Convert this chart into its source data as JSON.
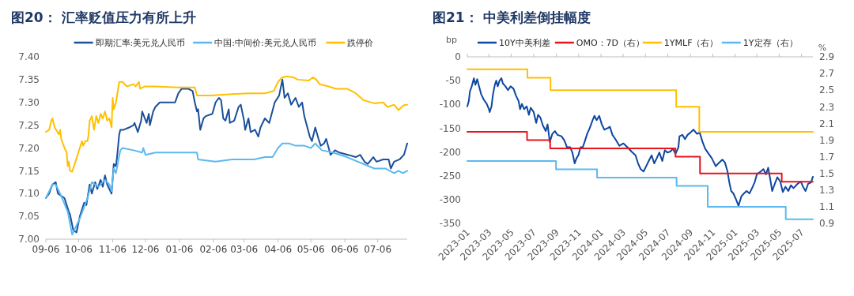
{
  "chart_data": [
    {
      "type": "line",
      "title": "图20：  汇率贬值压力有所上升",
      "legend": "top",
      "xlim": [
        "2024-09-06",
        "2025-08-02"
      ],
      "xticks": [
        {
          "value": "2024-09-06",
          "label": "09-06"
        },
        {
          "value": "2024-10-06",
          "label": "10-06"
        },
        {
          "value": "2024-11-06",
          "label": "11-06"
        },
        {
          "value": "2024-12-06",
          "label": "12-06"
        },
        {
          "value": "2025-01-06",
          "label": "01-06"
        },
        {
          "value": "2025-02-06",
          "label": "02-06"
        },
        {
          "value": "2025-03-06",
          "label": "03-06"
        },
        {
          "value": "2025-04-06",
          "label": "04-06"
        },
        {
          "value": "2025-05-06",
          "label": "05-06"
        },
        {
          "value": "2025-06-06",
          "label": "06-06"
        },
        {
          "value": "2025-07-06",
          "label": "07-06"
        }
      ],
      "ylim": [
        7.0,
        7.4
      ],
      "yticks": [
        {
          "value": 7.0,
          "label": "7.00"
        },
        {
          "value": 7.05,
          "label": "7.05"
        },
        {
          "value": 7.1,
          "label": "7.10"
        },
        {
          "value": 7.15,
          "label": "7.15"
        },
        {
          "value": 7.2,
          "label": "7.20"
        },
        {
          "value": 7.25,
          "label": "7.25"
        },
        {
          "value": 7.3,
          "label": "7.30"
        },
        {
          "value": 7.35,
          "label": "7.35"
        },
        {
          "value": 7.4,
          "label": "7.40"
        }
      ],
      "series": [
        {
          "name": "即期汇率:美元兑人民币",
          "color": "#1a4f9c",
          "x": [
            "2024-09-06",
            "2024-09-09",
            "2024-09-12",
            "2024-09-15",
            "2024-09-17",
            "2024-09-20",
            "2024-09-23",
            "2024-09-27",
            "2024-09-28",
            "2024-10-01",
            "2024-10-04",
            "2024-10-07",
            "2024-10-11",
            "2024-10-13",
            "2024-10-16",
            "2024-10-18",
            "2024-10-21",
            "2024-10-23",
            "2024-10-26",
            "2024-10-28",
            "2024-10-30",
            "2024-11-01",
            "2024-11-03",
            "2024-11-05",
            "2024-11-07",
            "2024-11-09",
            "2024-11-10",
            "2024-11-12",
            "2024-11-13",
            "2024-11-16",
            "2024-11-21",
            "2024-11-25",
            "2024-11-26",
            "2024-11-29",
            "2024-12-02",
            "2024-12-03",
            "2024-12-07",
            "2024-12-09",
            "2024-12-10",
            "2024-12-13",
            "2024-12-15",
            "2024-12-19",
            "2025-01-02",
            "2025-01-05",
            "2025-01-08",
            "2025-01-14",
            "2025-01-18",
            "2025-01-20",
            "2025-01-22",
            "2025-01-23",
            "2025-01-25",
            "2025-01-28",
            "2025-01-30",
            "2025-02-05",
            "2025-02-08",
            "2025-02-11",
            "2025-02-13",
            "2025-02-15",
            "2025-02-17",
            "2025-02-20",
            "2025-02-21",
            "2025-02-25",
            "2025-03-01",
            "2025-03-03",
            "2025-03-06",
            "2025-03-07",
            "2025-03-10",
            "2025-03-12",
            "2025-03-16",
            "2025-03-19",
            "2025-03-21",
            "2025-03-25",
            "2025-03-29",
            "2025-04-03",
            "2025-04-07",
            "2025-04-10",
            "2025-04-12",
            "2025-04-15",
            "2025-04-18",
            "2025-04-22",
            "2025-04-25",
            "2025-04-28",
            "2025-04-30",
            "2025-05-05",
            "2025-05-07",
            "2025-05-10",
            "2025-05-13",
            "2025-05-15",
            "2025-05-18",
            "2025-05-20",
            "2025-05-24",
            "2025-05-28",
            "2025-06-01",
            "2025-06-09",
            "2025-06-16",
            "2025-06-20",
            "2025-06-24",
            "2025-06-27",
            "2025-07-02",
            "2025-07-05",
            "2025-07-11",
            "2025-07-16",
            "2025-07-18",
            "2025-07-21",
            "2025-07-26",
            "2025-07-30",
            "2025-08-02"
          ],
          "values": [
            7.09,
            7.1,
            7.12,
            7.125,
            7.1,
            7.095,
            7.09,
            7.06,
            7.055,
            7.02,
            7.015,
            7.05,
            7.08,
            7.075,
            7.12,
            7.1,
            7.125,
            7.11,
            7.13,
            7.115,
            7.14,
            7.12,
            7.11,
            7.1,
            7.165,
            7.16,
            7.18,
            7.23,
            7.24,
            7.24,
            7.245,
            7.25,
            7.255,
            7.235,
            7.26,
            7.28,
            7.255,
            7.275,
            7.25,
            7.28,
            7.29,
            7.3,
            7.3,
            7.32,
            7.33,
            7.33,
            7.325,
            7.3,
            7.28,
            7.285,
            7.24,
            7.265,
            7.27,
            7.275,
            7.3,
            7.31,
            7.305,
            7.265,
            7.26,
            7.285,
            7.255,
            7.26,
            7.29,
            7.295,
            7.26,
            7.24,
            7.265,
            7.235,
            7.24,
            7.225,
            7.245,
            7.265,
            7.255,
            7.3,
            7.315,
            7.35,
            7.31,
            7.32,
            7.295,
            7.31,
            7.29,
            7.3,
            7.27,
            7.225,
            7.215,
            7.245,
            7.22,
            7.205,
            7.21,
            7.22,
            7.185,
            7.195,
            7.19,
            7.185,
            7.18,
            7.185,
            7.17,
            7.165,
            7.18,
            7.17,
            7.175,
            7.175,
            7.155,
            7.17,
            7.175,
            7.185,
            7.21
          ]
        },
        {
          "name": "中国:中间价:美元兑人民币",
          "color": "#5bb9f0",
          "x": [
            "2024-09-06",
            "2024-09-12",
            "2024-09-15",
            "2024-09-20",
            "2024-09-26",
            "2024-09-30",
            "2024-10-07",
            "2024-10-14",
            "2024-10-18",
            "2024-10-24",
            "2024-10-30",
            "2024-11-03",
            "2024-11-05",
            "2024-11-07",
            "2024-11-09",
            "2024-11-11",
            "2024-11-13",
            "2024-11-15",
            "2024-11-25",
            "2024-12-03",
            "2024-12-04",
            "2024-12-06",
            "2024-12-15",
            "2025-01-14",
            "2025-01-22",
            "2025-01-23",
            "2025-02-08",
            "2025-02-23",
            "2025-03-15",
            "2025-03-25",
            "2025-04-01",
            "2025-04-06",
            "2025-04-10",
            "2025-04-16",
            "2025-04-22",
            "2025-04-30",
            "2025-05-06",
            "2025-05-10",
            "2025-05-16",
            "2025-05-26",
            "2025-06-08",
            "2025-06-23",
            "2025-07-03",
            "2025-07-13",
            "2025-07-21",
            "2025-07-25",
            "2025-07-29",
            "2025-08-02"
          ],
          "values": [
            7.09,
            7.12,
            7.12,
            7.095,
            7.06,
            7.01,
            7.045,
            7.09,
            7.125,
            7.115,
            7.13,
            7.12,
            7.105,
            7.155,
            7.145,
            7.17,
            7.195,
            7.2,
            7.195,
            7.19,
            7.2,
            7.185,
            7.19,
            7.19,
            7.19,
            7.175,
            7.17,
            7.175,
            7.175,
            7.18,
            7.18,
            7.2,
            7.21,
            7.21,
            7.205,
            7.205,
            7.2,
            7.21,
            7.195,
            7.19,
            7.18,
            7.165,
            7.155,
            7.155,
            7.145,
            7.15,
            7.145,
            7.15
          ]
        },
        {
          "name": "跌停价",
          "color": "#ffc000",
          "x": [
            "2024-09-06",
            "2024-09-09",
            "2024-09-11",
            "2024-09-12",
            "2024-09-14",
            "2024-09-18",
            "2024-09-19",
            "2024-09-20",
            "2024-09-23",
            "2024-09-25",
            "2024-09-26",
            "2024-09-27",
            "2024-09-28",
            "2024-09-30",
            "2024-10-03",
            "2024-10-07",
            "2024-10-09",
            "2024-10-10",
            "2024-10-12",
            "2024-10-14",
            "2024-10-15",
            "2024-10-16",
            "2024-10-18",
            "2024-10-20",
            "2024-10-22",
            "2024-10-24",
            "2024-10-26",
            "2024-10-28",
            "2024-10-30",
            "2024-11-01",
            "2024-11-03",
            "2024-11-05",
            "2024-11-06",
            "2024-11-07",
            "2024-11-09",
            "2024-11-11",
            "2024-11-12",
            "2024-11-15",
            "2024-11-19",
            "2024-11-25",
            "2024-11-27",
            "2024-11-30",
            "2024-12-01",
            "2024-12-05",
            "2024-12-15",
            "2025-01-04",
            "2025-01-20",
            "2025-01-22",
            "2025-02-03",
            "2025-02-23",
            "2025-03-10",
            "2025-03-25",
            "2025-04-02",
            "2025-04-06",
            "2025-04-10",
            "2025-04-14",
            "2025-04-20",
            "2025-04-24",
            "2025-05-04",
            "2025-05-08",
            "2025-05-11",
            "2025-05-14",
            "2025-05-22",
            "2025-05-29",
            "2025-06-08",
            "2025-06-16",
            "2025-06-23",
            "2025-07-03",
            "2025-07-11",
            "2025-07-15",
            "2025-07-21",
            "2025-07-25",
            "2025-07-28",
            "2025-07-31",
            "2025-08-02"
          ],
          "values": [
            7.235,
            7.24,
            7.26,
            7.265,
            7.245,
            7.23,
            7.24,
            7.22,
            7.2,
            7.19,
            7.16,
            7.17,
            7.15,
            7.148,
            7.17,
            7.2,
            7.215,
            7.205,
            7.215,
            7.215,
            7.23,
            7.26,
            7.27,
            7.24,
            7.27,
            7.255,
            7.275,
            7.265,
            7.28,
            7.26,
            7.265,
            7.245,
            7.31,
            7.285,
            7.3,
            7.33,
            7.345,
            7.345,
            7.335,
            7.34,
            7.335,
            7.345,
            7.33,
            7.335,
            7.335,
            7.333,
            7.333,
            7.315,
            7.315,
            7.318,
            7.32,
            7.32,
            7.325,
            7.345,
            7.355,
            7.357,
            7.355,
            7.35,
            7.348,
            7.355,
            7.35,
            7.34,
            7.335,
            7.33,
            7.33,
            7.32,
            7.305,
            7.298,
            7.3,
            7.29,
            7.295,
            7.283,
            7.29,
            7.295,
            7.295
          ]
        }
      ]
    },
    {
      "type": "line",
      "title": "图21：  中美利差倒挂幅度",
      "legend": "top",
      "ylabel": "bp",
      "y2label": "%",
      "xlim": [
        "2023-01-01",
        "2025-08-01"
      ],
      "xticks": [
        "2023-01",
        "2023-03",
        "2023-05",
        "2023-07",
        "2023-09",
        "2023-11",
        "2024-01",
        "2024-03",
        "2024-05",
        "2024-07",
        "2024-09",
        "2024-11",
        "2025-01",
        "2025-03",
        "2025-05",
        "2025-07"
      ],
      "ylim": [
        -350,
        0
      ],
      "yticks": [
        -350,
        -300,
        -250,
        -200,
        -150,
        -100,
        -50,
        0
      ],
      "y2lim": [
        0.9,
        2.9
      ],
      "y2ticks": [
        0.9,
        1.1,
        1.3,
        1.5,
        1.7,
        1.9,
        2.1,
        2.3,
        2.5,
        2.7,
        2.9
      ],
      "series": [
        {
          "name": "10Y中美利差",
          "color": "#0d47a1",
          "x": [
            "2023-01-01",
            "2023-01-05",
            "2023-01-08",
            "2023-01-13",
            "2023-01-19",
            "2023-01-23",
            "2023-01-28",
            "2023-02-02",
            "2023-02-08",
            "2023-02-15",
            "2023-02-23",
            "2023-03-01",
            "2023-03-03",
            "2023-03-08",
            "2023-03-12",
            "2023-03-17",
            "2023-03-21",
            "2023-03-25",
            "2023-03-30",
            "2023-04-04",
            "2023-04-08",
            "2023-04-15",
            "2023-04-22",
            "2023-04-29",
            "2023-05-07",
            "2023-05-14",
            "2023-05-21",
            "2023-05-25",
            "2023-05-30",
            "2023-06-05",
            "2023-06-12",
            "2023-06-18",
            "2023-06-23",
            "2023-07-01",
            "2023-07-08",
            "2023-07-13",
            "2023-07-19",
            "2023-07-26",
            "2023-08-03",
            "2023-08-08",
            "2023-08-14",
            "2023-08-21",
            "2023-08-28",
            "2023-09-04",
            "2023-09-15",
            "2023-09-23",
            "2023-09-30",
            "2023-10-09",
            "2023-10-15",
            "2023-10-21",
            "2023-10-26",
            "2023-10-31",
            "2023-11-06",
            "2023-11-12",
            "2023-11-17",
            "2023-11-24",
            "2023-12-01",
            "2023-12-09",
            "2023-12-14",
            "2023-12-20",
            "2023-12-27",
            "2024-01-03",
            "2024-01-10",
            "2024-01-19",
            "2024-01-25",
            "2024-02-01",
            "2024-02-09",
            "2024-02-20",
            "2024-03-02",
            "2024-03-13",
            "2024-03-24",
            "2024-04-04",
            "2024-04-11",
            "2024-04-18",
            "2024-04-26",
            "2024-05-03",
            "2024-05-10",
            "2024-05-18",
            "2024-05-25",
            "2024-06-01",
            "2024-06-08",
            "2024-06-16",
            "2024-06-23",
            "2024-06-30",
            "2024-07-08",
            "2024-07-15",
            "2024-07-22",
            "2024-07-30",
            "2024-08-02",
            "2024-08-10",
            "2024-08-17",
            "2024-08-24",
            "2024-09-01",
            "2024-09-09",
            "2024-09-19",
            "2024-09-26",
            "2024-10-04",
            "2024-10-11",
            "2024-10-18",
            "2024-10-29",
            "2024-11-09",
            "2024-11-16",
            "2024-11-27",
            "2024-12-04",
            "2024-12-11",
            "2024-12-16",
            "2024-12-21",
            "2024-12-27",
            "2025-01-03",
            "2025-01-10",
            "2025-01-18",
            "2025-01-25",
            "2025-02-01",
            "2025-02-09",
            "2025-02-16",
            "2025-02-23",
            "2025-03-01",
            "2025-03-10",
            "2025-03-19",
            "2025-03-26",
            "2025-04-01",
            "2025-04-07",
            "2025-04-12",
            "2025-04-19",
            "2025-04-26",
            "2025-05-04",
            "2025-05-11",
            "2025-05-18",
            "2025-05-26",
            "2025-06-02",
            "2025-06-09",
            "2025-06-20",
            "2025-06-29",
            "2025-07-05",
            "2025-07-12",
            "2025-07-19",
            "2025-07-27",
            "2025-08-01"
          ],
          "values": [
            -104,
            -93,
            -73,
            -62,
            -45,
            -59,
            -47,
            -62,
            -79,
            -90,
            -99,
            -110,
            -116,
            -104,
            -79,
            -59,
            -50,
            -62,
            -50,
            -45,
            -56,
            -62,
            -70,
            -62,
            -67,
            -82,
            -93,
            -110,
            -99,
            -110,
            -104,
            -122,
            -107,
            -116,
            -139,
            -122,
            -127,
            -144,
            -156,
            -142,
            -179,
            -162,
            -156,
            -164,
            -167,
            -176,
            -190,
            -190,
            -202,
            -224,
            -213,
            -207,
            -190,
            -190,
            -179,
            -162,
            -150,
            -133,
            -124,
            -133,
            -124,
            -142,
            -153,
            -150,
            -147,
            -164,
            -173,
            -187,
            -182,
            -190,
            -199,
            -207,
            -224,
            -236,
            -241,
            -230,
            -219,
            -207,
            -224,
            -213,
            -201,
            -219,
            -196,
            -201,
            -199,
            -193,
            -204,
            -190,
            -167,
            -164,
            -173,
            -164,
            -159,
            -153,
            -162,
            -159,
            -179,
            -193,
            -201,
            -213,
            -230,
            -224,
            -216,
            -222,
            -241,
            -264,
            -282,
            -287,
            -299,
            -313,
            -293,
            -287,
            -282,
            -287,
            -276,
            -264,
            -247,
            -242,
            -236,
            -247,
            -233,
            -259,
            -282,
            -267,
            -253,
            -262,
            -284,
            -273,
            -282,
            -270,
            -276,
            -267,
            -262,
            -273,
            -282,
            -267,
            -264,
            -252
          ]
        },
        {
          "name": "OMO：7D（右）",
          "type": "step",
          "axis": "y2",
          "color": "#e8141c",
          "x": [
            "2023-01-01",
            "2023-06-13",
            "2023-08-15",
            "2024-07-22",
            "2024-09-27",
            "2025-05-08",
            "2025-08-01"
          ],
          "values": [
            2.0,
            1.9,
            1.8,
            1.7,
            1.5,
            1.4,
            1.4
          ]
        },
        {
          "name": "1YMLF（右）",
          "type": "step",
          "axis": "y2",
          "color": "#ffc000",
          "x": [
            "2023-01-01",
            "2023-06-14",
            "2023-08-16",
            "2024-07-24",
            "2024-09-25",
            "2025-08-01"
          ],
          "values": [
            2.75,
            2.65,
            2.5,
            2.3,
            2.0,
            2.0
          ]
        },
        {
          "name": "1Y定存（右）",
          "type": "step",
          "axis": "y2",
          "color": "#5bb9f0",
          "x": [
            "2023-01-01",
            "2023-08-31",
            "2023-12-21",
            "2024-07-25",
            "2024-10-18",
            "2025-05-19",
            "2025-08-01"
          ],
          "values": [
            1.65,
            1.55,
            1.45,
            1.35,
            1.1,
            0.95,
            0.95
          ]
        }
      ]
    }
  ]
}
